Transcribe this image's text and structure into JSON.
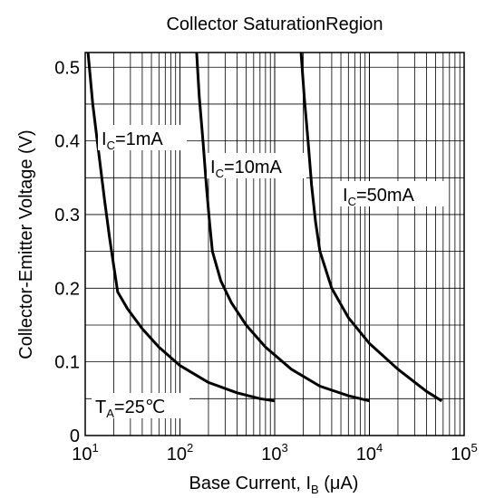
{
  "chart_data": {
    "type": "line",
    "title": "Collector SaturationRegion",
    "xlabel": {
      "main": "Base Current, I",
      "sub": "B",
      "unit": " (μA)"
    },
    "ylabel": "Collector-Emitter Voltage (V)",
    "x_scale": "log",
    "xlim": [
      10,
      100000
    ],
    "ylim": [
      0,
      0.52
    ],
    "grid": true,
    "x_ticks": [
      {
        "base": "10",
        "exp": "1",
        "value": 10
      },
      {
        "base": "10",
        "exp": "2",
        "value": 100
      },
      {
        "base": "10",
        "exp": "3",
        "value": 1000
      },
      {
        "base": "10",
        "exp": "4",
        "value": 10000
      },
      {
        "base": "10",
        "exp": "5",
        "value": 100000
      }
    ],
    "y_ticks": [
      {
        "label": "0",
        "value": 0
      },
      {
        "label": "0.1",
        "value": 0.1
      },
      {
        "label": "0.2",
        "value": 0.2
      },
      {
        "label": "0.3",
        "value": 0.3
      },
      {
        "label": "0.4",
        "value": 0.4
      },
      {
        "label": "0.5",
        "value": 0.5
      }
    ],
    "series": [
      {
        "name": "IC=1mA",
        "label_main": "I",
        "label_sub": "C",
        "label_rest": "=1mA",
        "points": [
          [
            10.7,
            0.52
          ],
          [
            12,
            0.45
          ],
          [
            14,
            0.38
          ],
          [
            16,
            0.32
          ],
          [
            18,
            0.27
          ],
          [
            20,
            0.23
          ],
          [
            22,
            0.195
          ],
          [
            28,
            0.172
          ],
          [
            40,
            0.145
          ],
          [
            60,
            0.12
          ],
          [
            100,
            0.095
          ],
          [
            200,
            0.072
          ],
          [
            400,
            0.058
          ],
          [
            700,
            0.05
          ],
          [
            1000,
            0.047
          ]
        ]
      },
      {
        "name": "IC=10mA",
        "label_main": "I",
        "label_sub": "C",
        "label_rest": "=10mA",
        "points": [
          [
            150,
            0.52
          ],
          [
            160,
            0.46
          ],
          [
            175,
            0.4
          ],
          [
            190,
            0.34
          ],
          [
            205,
            0.29
          ],
          [
            220,
            0.25
          ],
          [
            270,
            0.21
          ],
          [
            350,
            0.18
          ],
          [
            500,
            0.15
          ],
          [
            800,
            0.12
          ],
          [
            1500,
            0.09
          ],
          [
            3000,
            0.067
          ],
          [
            6000,
            0.054
          ],
          [
            10000,
            0.047
          ]
        ]
      },
      {
        "name": "IC=50mA",
        "label_main": "I",
        "label_sub": "C",
        "label_rest": "=50mA",
        "points": [
          [
            1900,
            0.52
          ],
          [
            2050,
            0.46
          ],
          [
            2250,
            0.4
          ],
          [
            2450,
            0.34
          ],
          [
            2700,
            0.29
          ],
          [
            3000,
            0.25
          ],
          [
            4000,
            0.2
          ],
          [
            6000,
            0.16
          ],
          [
            10000,
            0.125
          ],
          [
            20000,
            0.09
          ],
          [
            40000,
            0.06
          ],
          [
            58000,
            0.047
          ]
        ]
      }
    ],
    "annotation": {
      "main": "T",
      "sub": "A",
      "rest": "=25℃"
    }
  }
}
